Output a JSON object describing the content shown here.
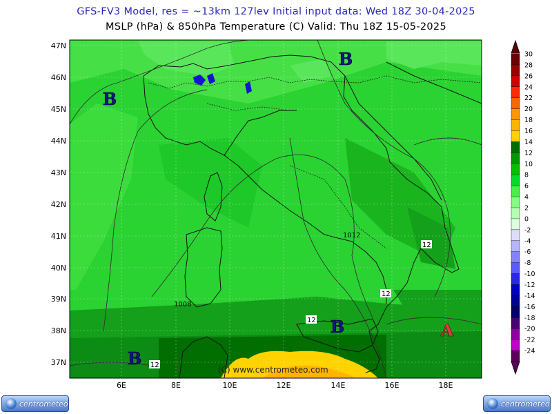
{
  "header": {
    "line1": "GFS-FV3 Model, res = ~13km 127lev    Initial input data: Wed 18Z 30-04-2025",
    "line2": "MSLP (hPa) & 850hPa Temperature (C)   Valid: Thu 18Z 15-05-2025"
  },
  "map": {
    "lat_labels": [
      "47N",
      "46N",
      "45N",
      "44N",
      "43N",
      "42N",
      "41N",
      "40N",
      "39N",
      "38N",
      "37N"
    ],
    "lon_labels": [
      "6E",
      "8E",
      "10E",
      "12E",
      "14E",
      "16E",
      "18E"
    ],
    "watermark": "(C) www.centrometeo.com",
    "pressure_markers": [
      {
        "label": "B",
        "kind": "low"
      },
      {
        "label": "B",
        "kind": "low"
      },
      {
        "label": "B",
        "kind": "low"
      },
      {
        "label": "B",
        "kind": "low"
      },
      {
        "label": "A",
        "kind": "high"
      }
    ],
    "isobar_labels": [
      "1012",
      "1008"
    ],
    "isotherm_labels": [
      "12",
      "12",
      "12",
      "12"
    ]
  },
  "legend": {
    "labels": [
      "30",
      "28",
      "26",
      "24",
      "22",
      "20",
      "18",
      "16",
      "14",
      "12",
      "10",
      "8",
      "6",
      "4",
      "2",
      "0",
      "-2",
      "-4",
      "-6",
      "-8",
      "-10",
      "-12",
      "-14",
      "-16",
      "-18",
      "-20",
      "-22",
      "-24"
    ],
    "colors": [
      "#6b0000",
      "#9a0000",
      "#d00000",
      "#ff2a00",
      "#ff6400",
      "#ff9600",
      "#ffb400",
      "#ffd200",
      "#006e00",
      "#009600",
      "#00be00",
      "#00dc28",
      "#46f046",
      "#82ff82",
      "#b4ffb4",
      "#dcffdc",
      "#dcdcff",
      "#b4b4ff",
      "#8282ff",
      "#5a5aff",
      "#2828e6",
      "#0000be",
      "#000096",
      "#00006e",
      "#460073",
      "#8c00a0",
      "#be00c8",
      "#5a005a"
    ]
  },
  "logos": {
    "text": "centrometeo"
  },
  "colors": {
    "title1": "#2a2ab8",
    "marker_low": "#14148c",
    "marker_high": "#dc3c3c"
  }
}
